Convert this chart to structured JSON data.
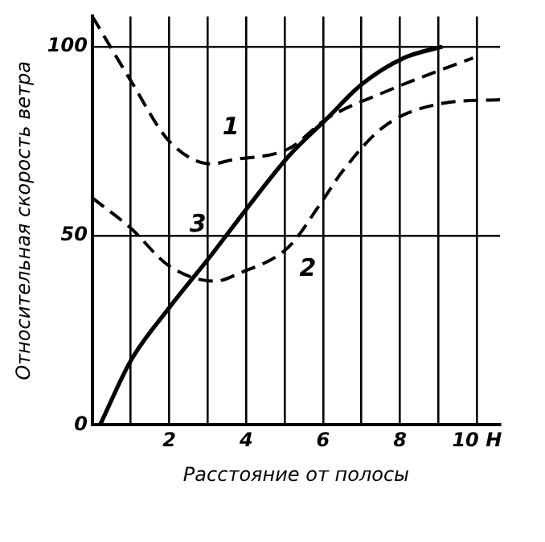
{
  "chart_data": {
    "type": "line",
    "xlabel": "Расстояние от полосы",
    "ylabel": "Относительная скорость ветра",
    "xlim": [
      0,
      10.6
    ],
    "ylim": [
      0,
      108
    ],
    "xticks": [
      {
        "value": 1,
        "label": null
      },
      2,
      {
        "value": 3,
        "label": null
      },
      4,
      {
        "value": 5,
        "label": null
      },
      6,
      {
        "value": 7,
        "label": null
      },
      8,
      {
        "value": 9,
        "label": null
      },
      {
        "value": 10,
        "label": "10 H"
      }
    ],
    "yticks": [
      0,
      50,
      100
    ],
    "grid": true,
    "legend": false,
    "marker": "none",
    "series": [
      {
        "name": "1",
        "color": "#000000",
        "line_style": "dashed",
        "x": [
          0,
          1,
          2,
          3.1,
          3.6,
          5.1,
          6.1,
          7.6,
          9.1,
          9.9
        ],
        "values": [
          108,
          91,
          75,
          69,
          70,
          73,
          81,
          88,
          94,
          97
        ]
      },
      {
        "name": "2",
        "color": "#000000",
        "line_style": "dashed",
        "x": [
          0,
          1,
          2,
          3.2,
          3.8,
          5.1,
          5.9,
          6.5,
          7.6,
          9.1,
          10.6
        ],
        "values": [
          60,
          52,
          42,
          38,
          40,
          47,
          58,
          67,
          79,
          85,
          86
        ]
      },
      {
        "name": "3",
        "color": "#000000",
        "line_style": "solid",
        "x": [
          0.2,
          1,
          2,
          3.1,
          4,
          5.1,
          6.1,
          7,
          8.1,
          9.1
        ],
        "values": [
          0,
          17,
          31,
          45,
          57,
          71,
          81,
          90,
          97,
          100
        ]
      }
    ]
  }
}
